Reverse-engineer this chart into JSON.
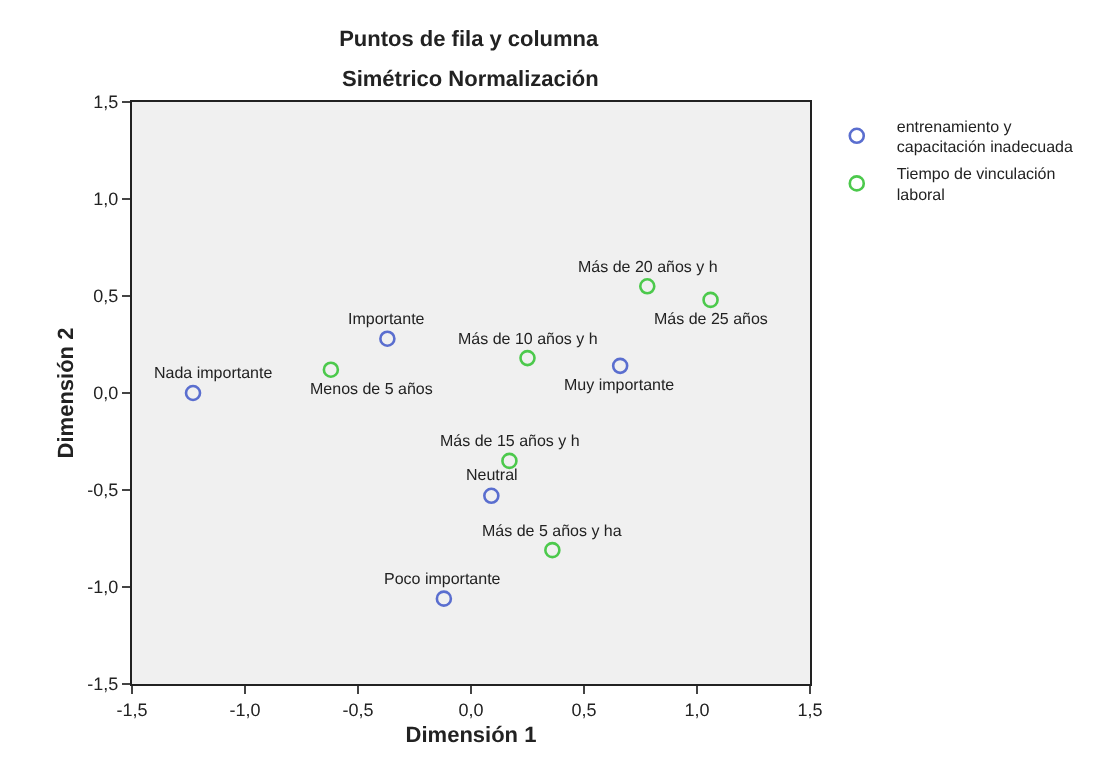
{
  "chart_data": {
    "type": "scatter",
    "title": "Puntos de fila y columna",
    "subtitle": "Simétrico Normalización",
    "xlabel": "Dimensión 1",
    "ylabel": "Dimensión 2",
    "xlim": [
      -1.5,
      1.5
    ],
    "ylim": [
      -1.5,
      1.5
    ],
    "xticks": [
      {
        "value": -1.5,
        "label": "-1,5"
      },
      {
        "value": -1.0,
        "label": "-1,0"
      },
      {
        "value": -0.5,
        "label": "-0,5"
      },
      {
        "value": 0,
        "label": "0,0"
      },
      {
        "value": 0.5,
        "label": "0,5"
      },
      {
        "value": 1.0,
        "label": "1,0"
      },
      {
        "value": 1.5,
        "label": "1,5"
      }
    ],
    "yticks": [
      {
        "value": -1.5,
        "label": "-1,5"
      },
      {
        "value": -1.0,
        "label": "-1,0"
      },
      {
        "value": -0.5,
        "label": "-0,5"
      },
      {
        "value": 0,
        "label": "0,0"
      },
      {
        "value": 0.5,
        "label": "0,5"
      },
      {
        "value": 1.0,
        "label": "1,0"
      },
      {
        "value": 1.5,
        "label": "1,5"
      }
    ],
    "grid": false,
    "legend": "top right",
    "marker": "circle",
    "series": [
      {
        "name": "entrenamiento y capacitación inadecuada",
        "color": "#5a6ecf",
        "x": [
          -1.23,
          -0.37,
          -0.12,
          0.66,
          0.09
        ],
        "values": [
          0.0,
          0.28,
          -1.06,
          0.14,
          -0.53
        ]
      },
      {
        "name": "Tiempo de vinculación laboral",
        "color": "#4cc94c",
        "x": [
          -0.62,
          0.78,
          1.06,
          0.25,
          0.17,
          0.36
        ],
        "values": [
          0.12,
          0.55,
          0.48,
          0.18,
          -0.35,
          -0.81
        ]
      }
    ],
    "annotations": [
      {
        "text": "Nada importante",
        "x": -1.23,
        "y": 0.0
      },
      {
        "text": "Menos de 5 años",
        "x": -0.62,
        "y": 0.12
      },
      {
        "text": "Importante",
        "x": -0.37,
        "y": 0.28
      },
      {
        "text": "Poco importante",
        "x": -0.12,
        "y": -1.06
      },
      {
        "text": "Más de 20 años y h",
        "x": 0.78,
        "y": 0.55
      },
      {
        "text": "Más de 25 años",
        "x": 1.06,
        "y": 0.48
      },
      {
        "text": "Más de 10 años y h",
        "x": 0.25,
        "y": 0.18
      },
      {
        "text": "Muy importante",
        "x": 0.66,
        "y": 0.14
      },
      {
        "text": "Más de 15 años y h",
        "x": 0.17,
        "y": -0.35
      },
      {
        "text": "Neutral",
        "x": 0.09,
        "y": -0.53
      },
      {
        "text": "Más de 5 años y ha",
        "x": 0.36,
        "y": -0.81
      }
    ]
  }
}
